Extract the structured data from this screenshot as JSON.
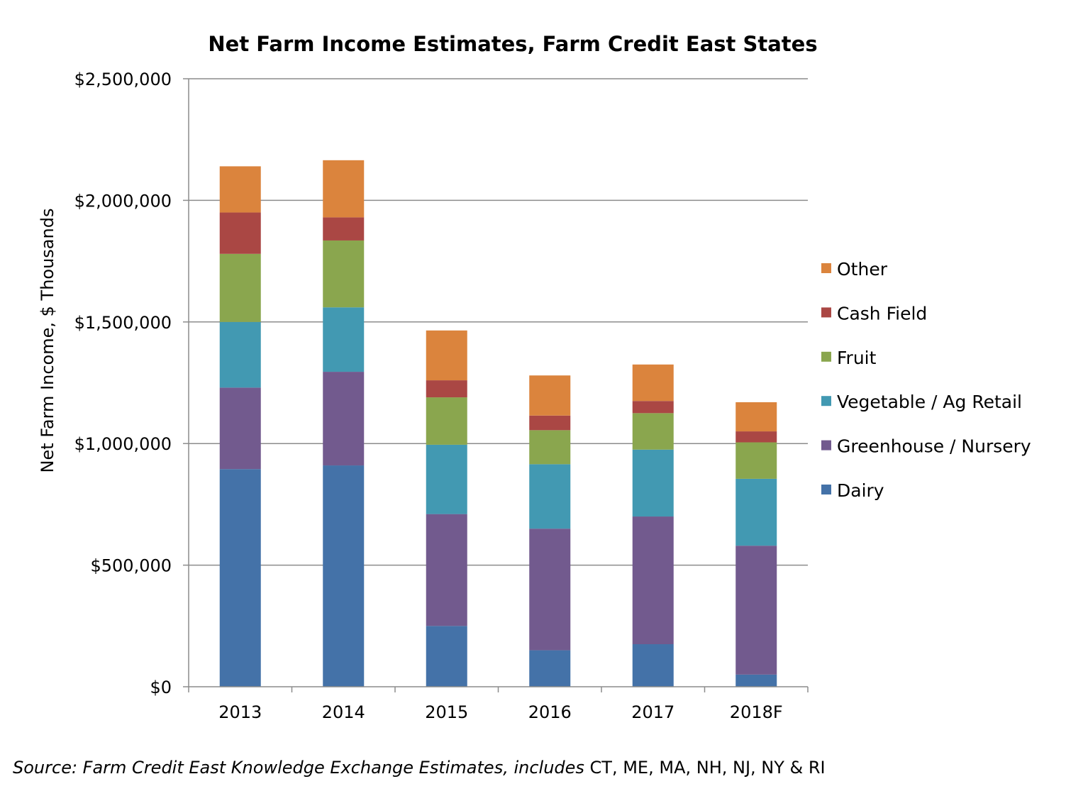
{
  "chart_data": {
    "type": "bar",
    "stacked": true,
    "title": "Net Farm Income Estimates, Farm Credit East States",
    "ylabel": "Net Farm Income, $ Thousands",
    "xlabel": "",
    "ylim": [
      0,
      2500000
    ],
    "yticks": [
      "$0",
      "$500,000",
      "$1,000,000",
      "$1,500,000",
      "$2,000,000",
      "$2,500,000"
    ],
    "ytick_values": [
      0,
      500000,
      1000000,
      1500000,
      2000000,
      2500000
    ],
    "grid": true,
    "legend_position": "right",
    "categories": [
      "2013",
      "2014",
      "2015",
      "2016",
      "2017",
      "2018F"
    ],
    "series": [
      {
        "name": "Dairy",
        "color": "#4472a8",
        "values": [
          895000,
          910000,
          250000,
          150000,
          175000,
          50000
        ]
      },
      {
        "name": "Greenhouse / Nursery",
        "color": "#725a8e",
        "values": [
          335000,
          385000,
          460000,
          500000,
          525000,
          530000
        ]
      },
      {
        "name": "Vegetable / Ag Retail",
        "color": "#4299b2",
        "values": [
          270000,
          265000,
          285000,
          265000,
          275000,
          275000
        ]
      },
      {
        "name": "Fruit",
        "color": "#8aa64e",
        "values": [
          280000,
          275000,
          195000,
          140000,
          150000,
          150000
        ]
      },
      {
        "name": "Cash Field",
        "color": "#aa4744",
        "values": [
          170000,
          95000,
          70000,
          60000,
          50000,
          45000
        ]
      },
      {
        "name": "Other",
        "color": "#db843d",
        "values": [
          190000,
          235000,
          205000,
          165000,
          150000,
          120000
        ]
      }
    ]
  },
  "source": {
    "prefix": "Source: Farm Credit East Knowledge Exchange Estimates, includes",
    "suffix": " CT, ME, MA, NH, NJ, NY & RI"
  }
}
